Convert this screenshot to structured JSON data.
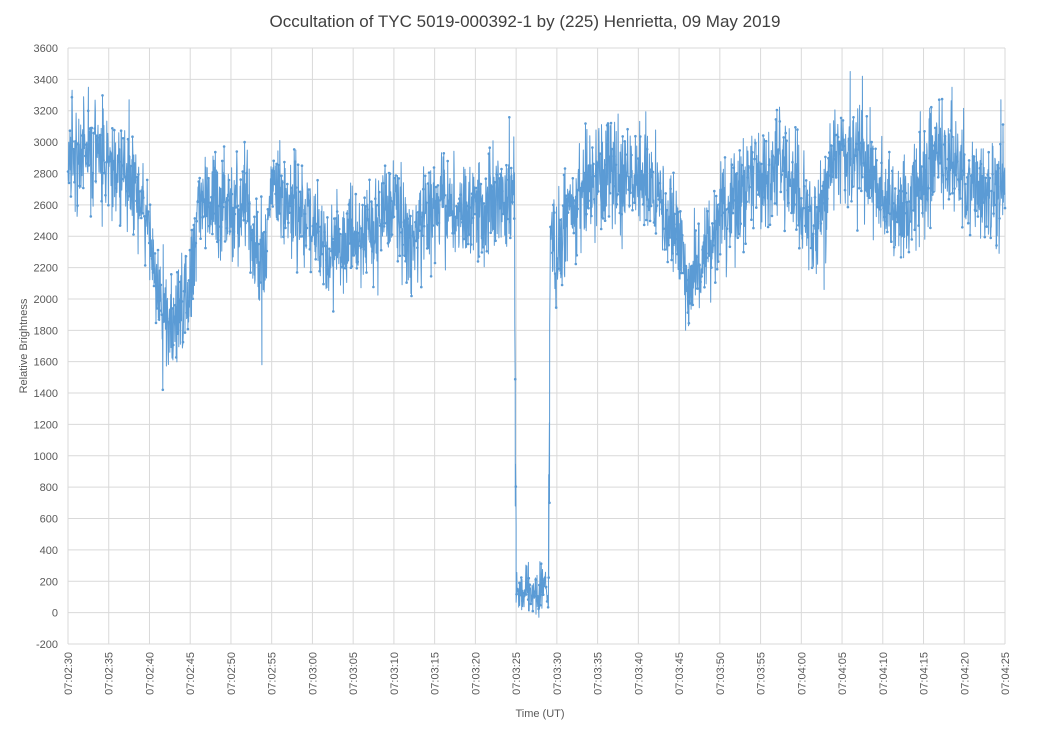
{
  "chart_data": {
    "type": "line",
    "title": "Occultation of TYC 5019-000392-1 by (225) Henrietta, 09 May 2019",
    "xlabel": "Time (UT)",
    "ylabel": "Relative Brightness",
    "ylim": [
      -200,
      3600
    ],
    "y_ticks": [
      "-200",
      "0",
      "200",
      "400",
      "600",
      "800",
      "1000",
      "1200",
      "1400",
      "1600",
      "1800",
      "2000",
      "2200",
      "2400",
      "2600",
      "2800",
      "3000",
      "3200",
      "3400",
      "3600"
    ],
    "xlim_seconds_of_day": [
      25350,
      25465
    ],
    "x_ticks": [
      "07:02:30",
      "07:02:35",
      "07:02:40",
      "07:02:45",
      "07:02:50",
      "07:02:55",
      "07:03:00",
      "07:03:05",
      "07:03:10",
      "07:03:15",
      "07:03:20",
      "07:03:25",
      "07:03:30",
      "07:03:35",
      "07:03:40",
      "07:03:45",
      "07:03:50",
      "07:03:55",
      "07:04:00",
      "07:04:05",
      "07:04:10",
      "07:04:15",
      "07:04:20",
      "07:04:25"
    ],
    "grid": true,
    "legend": "none",
    "series": [
      {
        "color": "#5b9bd5",
        "marker": "dot",
        "noise_amplitude": 170,
        "keypoints": [
          {
            "t": "07:02:30",
            "y": 2850
          },
          {
            "t": "07:02:32",
            "y": 2950
          },
          {
            "t": "07:02:35",
            "y": 2850
          },
          {
            "t": "07:02:38",
            "y": 2800
          },
          {
            "t": "07:02:40",
            "y": 2400
          },
          {
            "t": "07:02:41",
            "y": 2050
          },
          {
            "t": "07:02:42",
            "y": 1850
          },
          {
            "t": "07:02:44",
            "y": 1950
          },
          {
            "t": "07:02:45",
            "y": 2000
          },
          {
            "t": "07:02:46",
            "y": 2600
          },
          {
            "t": "07:02:48",
            "y": 2650
          },
          {
            "t": "07:02:50",
            "y": 2550
          },
          {
            "t": "07:02:52",
            "y": 2550
          },
          {
            "t": "07:02:53",
            "y": 2250
          },
          {
            "t": "07:02:54",
            "y": 2250
          },
          {
            "t": "07:02:55",
            "y": 2650
          },
          {
            "t": "07:02:57",
            "y": 2600
          },
          {
            "t": "07:03:00",
            "y": 2450
          },
          {
            "t": "07:03:02",
            "y": 2300
          },
          {
            "t": "07:03:05",
            "y": 2400
          },
          {
            "t": "07:03:08",
            "y": 2450
          },
          {
            "t": "07:03:10",
            "y": 2650
          },
          {
            "t": "07:03:12",
            "y": 2300
          },
          {
            "t": "07:03:15",
            "y": 2600
          },
          {
            "t": "07:03:18",
            "y": 2550
          },
          {
            "t": "07:03:20",
            "y": 2600
          },
          {
            "t": "07:03:23",
            "y": 2600
          },
          {
            "t": "07:03:24.8",
            "y": 2650
          },
          {
            "t": "07:03:25",
            "y": 120
          },
          {
            "t": "07:03:27",
            "y": 130
          },
          {
            "t": "07:03:29",
            "y": 140
          },
          {
            "t": "07:03:29.2",
            "y": 2500
          },
          {
            "t": "07:03:30",
            "y": 2200
          },
          {
            "t": "07:03:31",
            "y": 2500
          },
          {
            "t": "07:03:33",
            "y": 2650
          },
          {
            "t": "07:03:35",
            "y": 2800
          },
          {
            "t": "07:03:40",
            "y": 2800
          },
          {
            "t": "07:03:43",
            "y": 2600
          },
          {
            "t": "07:03:45",
            "y": 2300
          },
          {
            "t": "07:03:46",
            "y": 2050
          },
          {
            "t": "07:03:48",
            "y": 2250
          },
          {
            "t": "07:03:50",
            "y": 2500
          },
          {
            "t": "07:03:53",
            "y": 2650
          },
          {
            "t": "07:03:55",
            "y": 2800
          },
          {
            "t": "07:03:57",
            "y": 2900
          },
          {
            "t": "07:04:00",
            "y": 2600
          },
          {
            "t": "07:04:02",
            "y": 2450
          },
          {
            "t": "07:04:04",
            "y": 2900
          },
          {
            "t": "07:04:06",
            "y": 2950
          },
          {
            "t": "07:04:08",
            "y": 2900
          },
          {
            "t": "07:04:10",
            "y": 2650
          },
          {
            "t": "07:04:12",
            "y": 2550
          },
          {
            "t": "07:04:15",
            "y": 2750
          },
          {
            "t": "07:04:17",
            "y": 2950
          },
          {
            "t": "07:04:20",
            "y": 2750
          },
          {
            "t": "07:04:23",
            "y": 2650
          },
          {
            "t": "07:04:25",
            "y": 2700
          }
        ],
        "notable_points": [
          {
            "t": "07:02:30.5",
            "y": 3330
          },
          {
            "t": "07:02:32.5",
            "y": 3350
          },
          {
            "t": "07:02:37.5",
            "y": 3270
          },
          {
            "t": "07:02:42.5",
            "y": 1660
          },
          {
            "t": "07:02:53.8",
            "y": 1580
          },
          {
            "t": "07:03:24.9",
            "y": 680
          },
          {
            "t": "07:03:25.0",
            "y": 550
          },
          {
            "t": "07:03:26.5",
            "y": 320
          },
          {
            "t": "07:03:27.8",
            "y": -30
          },
          {
            "t": "07:03:29.0",
            "y": 880
          },
          {
            "t": "07:03:29.1",
            "y": 700
          },
          {
            "t": "07:03:45.8",
            "y": 1800
          },
          {
            "t": "07:04:02.8",
            "y": 2060
          },
          {
            "t": "07:04:06.0",
            "y": 3450
          },
          {
            "t": "07:04:07.5",
            "y": 3420
          },
          {
            "t": "07:04:18.5",
            "y": 3350
          },
          {
            "t": "07:04:24.5",
            "y": 3270
          }
        ]
      }
    ]
  }
}
